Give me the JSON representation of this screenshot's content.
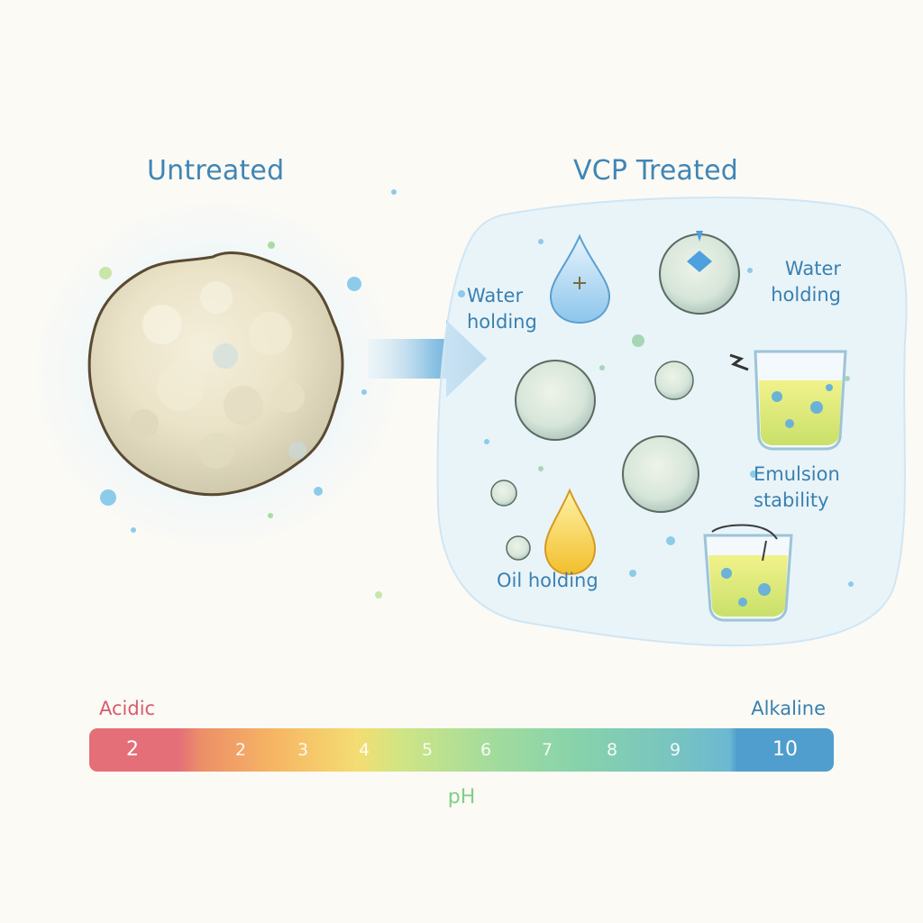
{
  "left_panel": {
    "title": "Untreated"
  },
  "right_panel": {
    "title": "VCP Treated",
    "labels": {
      "water_holding_left": [
        "Water",
        "holding"
      ],
      "water_holding_right": [
        "Water",
        "holding"
      ],
      "emulsion_stability": [
        "Emulsion",
        "stability"
      ],
      "oil_holding": "Oil holding"
    }
  },
  "ph_scale": {
    "axis_label": "pH",
    "left_label": "Acidic",
    "right_label": "Alkaline",
    "ticks": [
      "2",
      "2",
      "3",
      "4",
      "5",
      "6",
      "7",
      "8",
      "9",
      "10"
    ]
  },
  "colors": {
    "title": "#3f86b5",
    "acidic": "#d65c6e",
    "alkaline": "#3a80b0",
    "ph_label": "#7fcf86"
  }
}
